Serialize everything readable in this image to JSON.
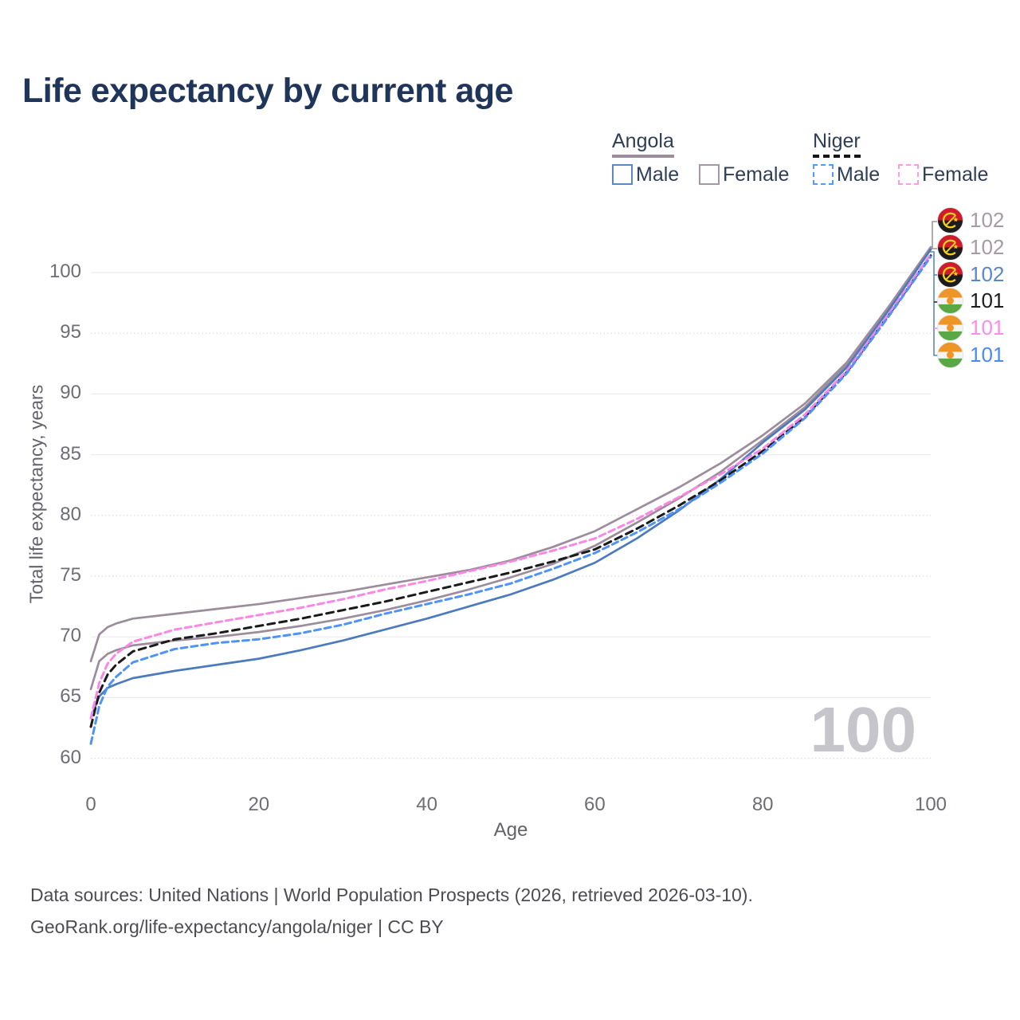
{
  "title": "Life expectancy by current age",
  "legend": {
    "angola": {
      "label": "Angola",
      "male": "Male",
      "female": "Female"
    },
    "niger": {
      "label": "Niger",
      "male": "Male",
      "female": "Female"
    }
  },
  "watermark_current_age": "100",
  "footer": {
    "line1": "Data sources: United Nations | World Population Prospects (2026, retrieved 2026-03-10).",
    "line2": "GeoRank.org/life-expectancy/angola/niger | CC BY"
  },
  "colors": {
    "title_text": "#20355a",
    "angola_male": "#4b7bbd",
    "angola_female": "#9c8c9c",
    "angola_total": "#9c8c9c",
    "niger_male": "#4f93f7",
    "niger_female": "#fb87e5",
    "niger_total": "#1a1a1a",
    "grid": "#ebebf0",
    "tick_text": "#6d6d76",
    "watermark": "#c5c5cb"
  },
  "end_labels": [
    {
      "flag": "angola",
      "value": "102",
      "color": "#a69aa5"
    },
    {
      "flag": "angola",
      "value": "102",
      "color": "#a69aa5"
    },
    {
      "flag": "angola",
      "value": "102",
      "color": "#5b87ca"
    },
    {
      "flag": "niger",
      "value": "101",
      "color": "#1c1c1c"
    },
    {
      "flag": "niger",
      "value": "101",
      "color": "#fb8ce8"
    },
    {
      "flag": "niger",
      "value": "101",
      "color": "#4b8bf0"
    }
  ],
  "chart_data": {
    "type": "line",
    "title": "Life expectancy by current age",
    "xlabel": "Age",
    "ylabel": "Total life expectancy, years",
    "xlim": [
      0,
      100
    ],
    "ylim": [
      58,
      103
    ],
    "xticks": [
      0,
      20,
      40,
      60,
      80,
      100
    ],
    "yticks": [
      60,
      65,
      70,
      75,
      80,
      85,
      90,
      95,
      100
    ],
    "grid": true,
    "legend_position": "top-right",
    "current_age_indicator": 100,
    "x": [
      0,
      1,
      2,
      3,
      5,
      10,
      15,
      20,
      25,
      30,
      35,
      40,
      45,
      50,
      55,
      60,
      65,
      70,
      75,
      80,
      85,
      90,
      95,
      100
    ],
    "series": [
      {
        "name": "Angola Female",
        "country": "Angola",
        "sex": "Female",
        "style": "solid",
        "color": "#9c8c9c",
        "end_value": 102,
        "values": [
          68.0,
          70.2,
          70.8,
          71.1,
          71.5,
          71.9,
          72.3,
          72.7,
          73.2,
          73.7,
          74.3,
          74.9,
          75.5,
          76.3,
          77.4,
          78.7,
          80.5,
          82.3,
          84.3,
          86.6,
          89.2,
          92.6,
          97.2,
          102.1
        ]
      },
      {
        "name": "Angola Both sexes",
        "country": "Angola",
        "sex": "Both",
        "style": "solid",
        "color": "#9c8c9c",
        "end_value": 102,
        "values": [
          65.7,
          68.0,
          68.6,
          68.9,
          69.3,
          69.7,
          70.0,
          70.4,
          70.9,
          71.5,
          72.2,
          73.0,
          73.9,
          74.9,
          76.0,
          77.5,
          79.4,
          81.4,
          83.6,
          86.2,
          88.9,
          92.4,
          97.1,
          102.0
        ]
      },
      {
        "name": "Angola Male",
        "country": "Angola",
        "sex": "Male",
        "style": "solid",
        "color": "#4b7bbd",
        "end_value": 102,
        "values": [
          63.3,
          65.1,
          65.8,
          66.1,
          66.6,
          67.2,
          67.7,
          68.2,
          68.9,
          69.7,
          70.6,
          71.5,
          72.5,
          73.5,
          74.7,
          76.1,
          78.1,
          80.4,
          83.0,
          86.0,
          88.7,
          92.2,
          96.9,
          101.9
        ]
      },
      {
        "name": "Niger Both sexes",
        "country": "Niger",
        "sex": "Both",
        "style": "dashed",
        "color": "#1a1a1a",
        "end_value": 101,
        "values": [
          62.6,
          65.4,
          66.9,
          67.7,
          68.8,
          69.8,
          70.3,
          70.9,
          71.5,
          72.2,
          72.9,
          73.7,
          74.5,
          75.3,
          76.2,
          77.2,
          78.9,
          80.8,
          82.9,
          85.3,
          88.1,
          91.8,
          96.5,
          101.4
        ]
      },
      {
        "name": "Niger Female",
        "country": "Niger",
        "sex": "Female",
        "style": "dashed",
        "color": "#fb87e5",
        "end_value": 101,
        "values": [
          63.3,
          66.2,
          67.8,
          68.6,
          69.6,
          70.6,
          71.2,
          71.8,
          72.4,
          73.1,
          73.9,
          74.6,
          75.4,
          76.2,
          77.1,
          78.1,
          79.7,
          81.5,
          83.4,
          85.5,
          88.3,
          91.9,
          96.6,
          101.5
        ]
      },
      {
        "name": "Niger Male",
        "country": "Niger",
        "sex": "Male",
        "style": "dashed",
        "color": "#4f93f7",
        "end_value": 101,
        "values": [
          61.2,
          64.3,
          65.9,
          66.7,
          67.9,
          69.0,
          69.5,
          69.8,
          70.3,
          71.0,
          71.9,
          72.7,
          73.5,
          74.4,
          75.6,
          76.9,
          78.6,
          80.5,
          82.7,
          85.1,
          88.0,
          91.7,
          96.4,
          101.3
        ]
      }
    ]
  }
}
